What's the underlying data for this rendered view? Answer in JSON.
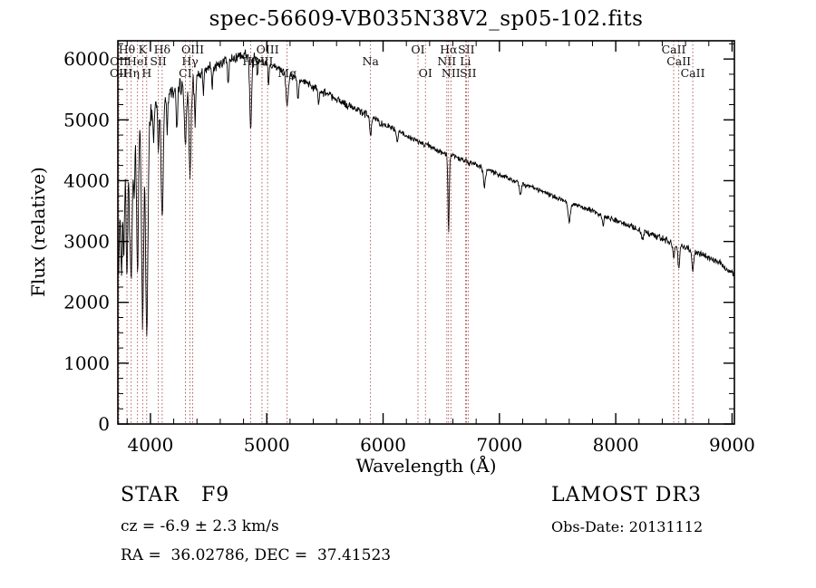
{
  "title": "spec-56609-VB035N38V2_sp05-102.fits",
  "annotations": {
    "classification": "STAR   F9",
    "cz": "cz = -6.9 ± 2.3 km/s",
    "radec": "RA =  36.02786, DEC =  37.41523",
    "survey": "LAMOST DR3",
    "obs_date": "Obs-Date: 20131112"
  },
  "chart_data": {
    "type": "line",
    "title": "spec-56609-VB035N38V2_sp05-102.fits",
    "xlabel": "Wavelength (Å)",
    "ylabel": "Flux (relative)",
    "xlim": [
      3720,
      9020
    ],
    "ylim": [
      0,
      6300
    ],
    "xticks": [
      4000,
      5000,
      6000,
      7000,
      8000,
      9000
    ],
    "yticks": [
      0,
      1000,
      2000,
      3000,
      4000,
      5000,
      6000
    ],
    "x_minor_step": 200,
    "y_minor_step": 250,
    "line_color": "#000000",
    "marker_color": "#9e3a3a",
    "label_color": "#111111",
    "spectral_lines": [
      {
        "label": "Hθ",
        "wavelength": 3798,
        "row": 1
      },
      {
        "label": "K",
        "wavelength": 3933,
        "row": 1
      },
      {
        "label": "Hδ",
        "wavelength": 4101,
        "row": 1
      },
      {
        "label": "OIII",
        "wavelength": 4363,
        "row": 1
      },
      {
        "label": "OIII",
        "wavelength": 5007,
        "row": 1
      },
      {
        "label": "OI",
        "wavelength": 6300,
        "row": 1
      },
      {
        "label": "Hα",
        "wavelength": 6563,
        "row": 1
      },
      {
        "label": "SII",
        "wavelength": 6716,
        "row": 1
      },
      {
        "label": "CaII",
        "wavelength": 8498,
        "row": 1
      },
      {
        "label": "OII",
        "wavelength": 3729,
        "row": 2
      },
      {
        "label": "HeI",
        "wavelength": 3889,
        "row": 2
      },
      {
        "label": "SII",
        "wavelength": 4068,
        "row": 2
      },
      {
        "label": "Hγ",
        "wavelength": 4340,
        "row": 2
      },
      {
        "label": "Hβ",
        "wavelength": 4861,
        "row": 2
      },
      {
        "label": "OIII",
        "wavelength": 4959,
        "row": 2
      },
      {
        "label": "Na",
        "wavelength": 5892,
        "row": 2
      },
      {
        "label": "NII",
        "wavelength": 6548,
        "row": 2
      },
      {
        "label": "Li",
        "wavelength": 6708,
        "row": 2
      },
      {
        "label": "CaII",
        "wavelength": 8542,
        "row": 2
      },
      {
        "label": "OII",
        "wavelength": 3726,
        "row": 3
      },
      {
        "label": "Hη",
        "wavelength": 3835,
        "row": 3
      },
      {
        "label": "H",
        "wavelength": 3968,
        "row": 3
      },
      {
        "label": "CI",
        "wavelength": 4300,
        "row": 3
      },
      {
        "label": "Mg",
        "wavelength": 5175,
        "row": 3
      },
      {
        "label": "OI",
        "wavelength": 6364,
        "row": 3
      },
      {
        "label": "NII",
        "wavelength": 6583,
        "row": 3
      },
      {
        "label": "SII",
        "wavelength": 6731,
        "row": 3
      },
      {
        "label": "CaII",
        "wavelength": 8662,
        "row": 3
      }
    ],
    "continuum": [
      [
        3720,
        3900
      ],
      [
        3740,
        4100
      ],
      [
        3760,
        4250
      ],
      [
        3780,
        4400
      ],
      [
        3800,
        4500
      ],
      [
        3830,
        4650
      ],
      [
        3860,
        4750
      ],
      [
        3900,
        4900
      ],
      [
        3950,
        5000
      ],
      [
        4000,
        5100
      ],
      [
        4050,
        5200
      ],
      [
        4100,
        5300
      ],
      [
        4150,
        5380
      ],
      [
        4200,
        5470
      ],
      [
        4250,
        5550
      ],
      [
        4300,
        5620
      ],
      [
        4350,
        5680
      ],
      [
        4400,
        5740
      ],
      [
        4450,
        5800
      ],
      [
        4500,
        5850
      ],
      [
        4550,
        5890
      ],
      [
        4600,
        5930
      ],
      [
        4650,
        5970
      ],
      [
        4700,
        6000
      ],
      [
        4750,
        6030
      ],
      [
        4800,
        6050
      ],
      [
        4850,
        6040
      ],
      [
        4900,
        6010
      ],
      [
        4950,
        5970
      ],
      [
        5000,
        5930
      ],
      [
        5100,
        5840
      ],
      [
        5200,
        5740
      ],
      [
        5300,
        5640
      ],
      [
        5400,
        5540
      ],
      [
        5500,
        5440
      ],
      [
        5600,
        5340
      ],
      [
        5700,
        5240
      ],
      [
        5800,
        5140
      ],
      [
        5900,
        5040
      ],
      [
        6000,
        4940
      ],
      [
        6100,
        4840
      ],
      [
        6200,
        4740
      ],
      [
        6300,
        4650
      ],
      [
        6400,
        4560
      ],
      [
        6500,
        4480
      ],
      [
        6600,
        4400
      ],
      [
        6700,
        4330
      ],
      [
        6800,
        4250
      ],
      [
        6900,
        4180
      ],
      [
        7000,
        4100
      ],
      [
        7100,
        4020
      ],
      [
        7200,
        3950
      ],
      [
        7300,
        3870
      ],
      [
        7400,
        3800
      ],
      [
        7500,
        3720
      ],
      [
        7600,
        3650
      ],
      [
        7700,
        3570
      ],
      [
        7800,
        3500
      ],
      [
        7900,
        3420
      ],
      [
        8000,
        3350
      ],
      [
        8100,
        3270
      ],
      [
        8200,
        3200
      ],
      [
        8300,
        3120
      ],
      [
        8400,
        3050
      ],
      [
        8500,
        2970
      ],
      [
        8600,
        2900
      ],
      [
        8700,
        2820
      ],
      [
        8800,
        2740
      ],
      [
        8900,
        2650
      ],
      [
        9000,
        2480
      ],
      [
        9020,
        2430
      ]
    ],
    "absorption_lines": [
      {
        "wavelength": 3727,
        "depth": 1400,
        "sigma": 6
      },
      {
        "wavelength": 3750,
        "depth": 1700,
        "sigma": 7
      },
      {
        "wavelength": 3771,
        "depth": 1600,
        "sigma": 6
      },
      {
        "wavelength": 3798,
        "depth": 2000,
        "sigma": 7
      },
      {
        "wavelength": 3820,
        "depth": 900,
        "sigma": 5
      },
      {
        "wavelength": 3835,
        "depth": 2400,
        "sigma": 8
      },
      {
        "wavelength": 3860,
        "depth": 1000,
        "sigma": 5
      },
      {
        "wavelength": 3889,
        "depth": 2300,
        "sigma": 8
      },
      {
        "wavelength": 3933,
        "depth": 3300,
        "sigma": 9
      },
      {
        "wavelength": 3968,
        "depth": 3500,
        "sigma": 10
      },
      {
        "wavelength": 4026,
        "depth": 500,
        "sigma": 5
      },
      {
        "wavelength": 4068,
        "depth": 700,
        "sigma": 5
      },
      {
        "wavelength": 4101,
        "depth": 1900,
        "sigma": 9
      },
      {
        "wavelength": 4144,
        "depth": 500,
        "sigma": 5
      },
      {
        "wavelength": 4227,
        "depth": 700,
        "sigma": 6
      },
      {
        "wavelength": 4300,
        "depth": 1000,
        "sigma": 10
      },
      {
        "wavelength": 4340,
        "depth": 1550,
        "sigma": 9
      },
      {
        "wavelength": 4383,
        "depth": 750,
        "sigma": 6
      },
      {
        "wavelength": 4455,
        "depth": 400,
        "sigma": 5
      },
      {
        "wavelength": 4531,
        "depth": 400,
        "sigma": 5
      },
      {
        "wavelength": 4668,
        "depth": 400,
        "sigma": 6
      },
      {
        "wavelength": 4861,
        "depth": 1150,
        "sigma": 8
      },
      {
        "wavelength": 4920,
        "depth": 300,
        "sigma": 5
      },
      {
        "wavelength": 5015,
        "depth": 300,
        "sigma": 5
      },
      {
        "wavelength": 5175,
        "depth": 520,
        "sigma": 10
      },
      {
        "wavelength": 5269,
        "depth": 350,
        "sigma": 7
      },
      {
        "wavelength": 5446,
        "depth": 250,
        "sigma": 6
      },
      {
        "wavelength": 5893,
        "depth": 320,
        "sigma": 7
      },
      {
        "wavelength": 6122,
        "depth": 200,
        "sigma": 6
      },
      {
        "wavelength": 6563,
        "depth": 1250,
        "sigma": 6
      },
      {
        "wavelength": 6870,
        "depth": 280,
        "sigma": 9
      },
      {
        "wavelength": 7180,
        "depth": 180,
        "sigma": 8
      },
      {
        "wavelength": 7600,
        "depth": 330,
        "sigma": 10
      },
      {
        "wavelength": 7890,
        "depth": 150,
        "sigma": 7
      },
      {
        "wavelength": 8230,
        "depth": 150,
        "sigma": 8
      },
      {
        "wavelength": 8498,
        "depth": 280,
        "sigma": 7
      },
      {
        "wavelength": 8542,
        "depth": 350,
        "sigma": 8
      },
      {
        "wavelength": 8662,
        "depth": 330,
        "sigma": 8
      }
    ],
    "noise_bands": [
      [
        4000,
        190
      ],
      [
        4400,
        150
      ],
      [
        4900,
        100
      ],
      [
        6000,
        70
      ],
      [
        7000,
        52
      ],
      [
        8100,
        42
      ],
      [
        9020,
        55
      ]
    ]
  }
}
